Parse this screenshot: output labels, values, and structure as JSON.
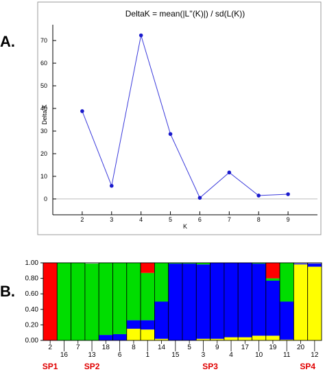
{
  "panels": {
    "a_label": "A.",
    "b_label": "B."
  },
  "chart_data": [
    {
      "type": "line",
      "title": "DeltaK = mean(|L''(K)|) / sd(L(K))",
      "xlabel": "K",
      "ylabel": "Delta K",
      "x": [
        2,
        3,
        4,
        5,
        6,
        7,
        8,
        9
      ],
      "series": [
        {
          "values": [
            38.8,
            5.8,
            72.3,
            28.7,
            0.5,
            11.7,
            1.5,
            2.1
          ]
        }
      ],
      "xticks": [
        "2",
        "3",
        "4",
        "5",
        "6",
        "7",
        "8",
        "9"
      ],
      "yticks": [
        "0",
        "10",
        "20",
        "30",
        "40",
        "50",
        "60",
        "70"
      ],
      "xlim": [
        1,
        10
      ],
      "ylim": [
        -7,
        77
      ],
      "colors": {
        "line": "#3a3adb",
        "marker": "#1a1acc",
        "zero_line": "#bbbbbb"
      },
      "grid": false,
      "legend": "none"
    },
    {
      "type": "bar",
      "stacked": true,
      "categories": [
        "2",
        "16",
        "7",
        "13",
        "18",
        "6",
        "8",
        "1",
        "14",
        "15",
        "5",
        "3",
        "9",
        "4",
        "17",
        "10",
        "19",
        "11",
        "20",
        "12"
      ],
      "cluster_colors": [
        "#ff0000",
        "#00dd00",
        "#0000ff",
        "#ffff00"
      ],
      "series": [
        {
          "name": "red",
          "values": [
            1.0,
            0.0,
            0.0,
            0.0,
            0.0,
            0.0,
            0.0,
            0.13,
            0.0,
            0.0,
            0.0,
            0.0,
            0.0,
            0.0,
            0.0,
            0.0,
            0.2,
            0.0,
            0.0,
            0.0
          ]
        },
        {
          "name": "green",
          "values": [
            0.0,
            1.0,
            1.0,
            0.99,
            0.93,
            0.92,
            0.74,
            0.61,
            0.5,
            0.01,
            0.01,
            0.02,
            0.0,
            0.0,
            0.0,
            0.01,
            0.03,
            0.5,
            0.0,
            0.0
          ]
        },
        {
          "name": "blue",
          "values": [
            0.0,
            0.0,
            0.0,
            0.0,
            0.07,
            0.08,
            0.11,
            0.12,
            0.48,
            0.99,
            0.99,
            0.96,
            0.98,
            0.96,
            0.96,
            0.93,
            0.71,
            0.49,
            0.01,
            0.04
          ]
        },
        {
          "name": "yellow",
          "values": [
            0.0,
            0.0,
            0.0,
            0.0,
            0.0,
            0.0,
            0.15,
            0.14,
            0.02,
            0.0,
            0.0,
            0.02,
            0.02,
            0.04,
            0.04,
            0.06,
            0.06,
            0.01,
            0.98,
            0.95
          ]
        }
      ],
      "yticks": [
        "0.00",
        "0.20",
        "0.40",
        "0.60",
        "0.80",
        "1.00"
      ],
      "ylim": [
        0,
        1
      ],
      "group_labels": [
        {
          "text": "SP1",
          "start": 0,
          "end": 0
        },
        {
          "text": "SP2",
          "start": 1,
          "end": 5
        },
        {
          "text": "SP3",
          "start": 6,
          "end": 17
        },
        {
          "text": "SP4",
          "start": 18,
          "end": 19
        }
      ],
      "group_label_color": "#e00000"
    }
  ]
}
